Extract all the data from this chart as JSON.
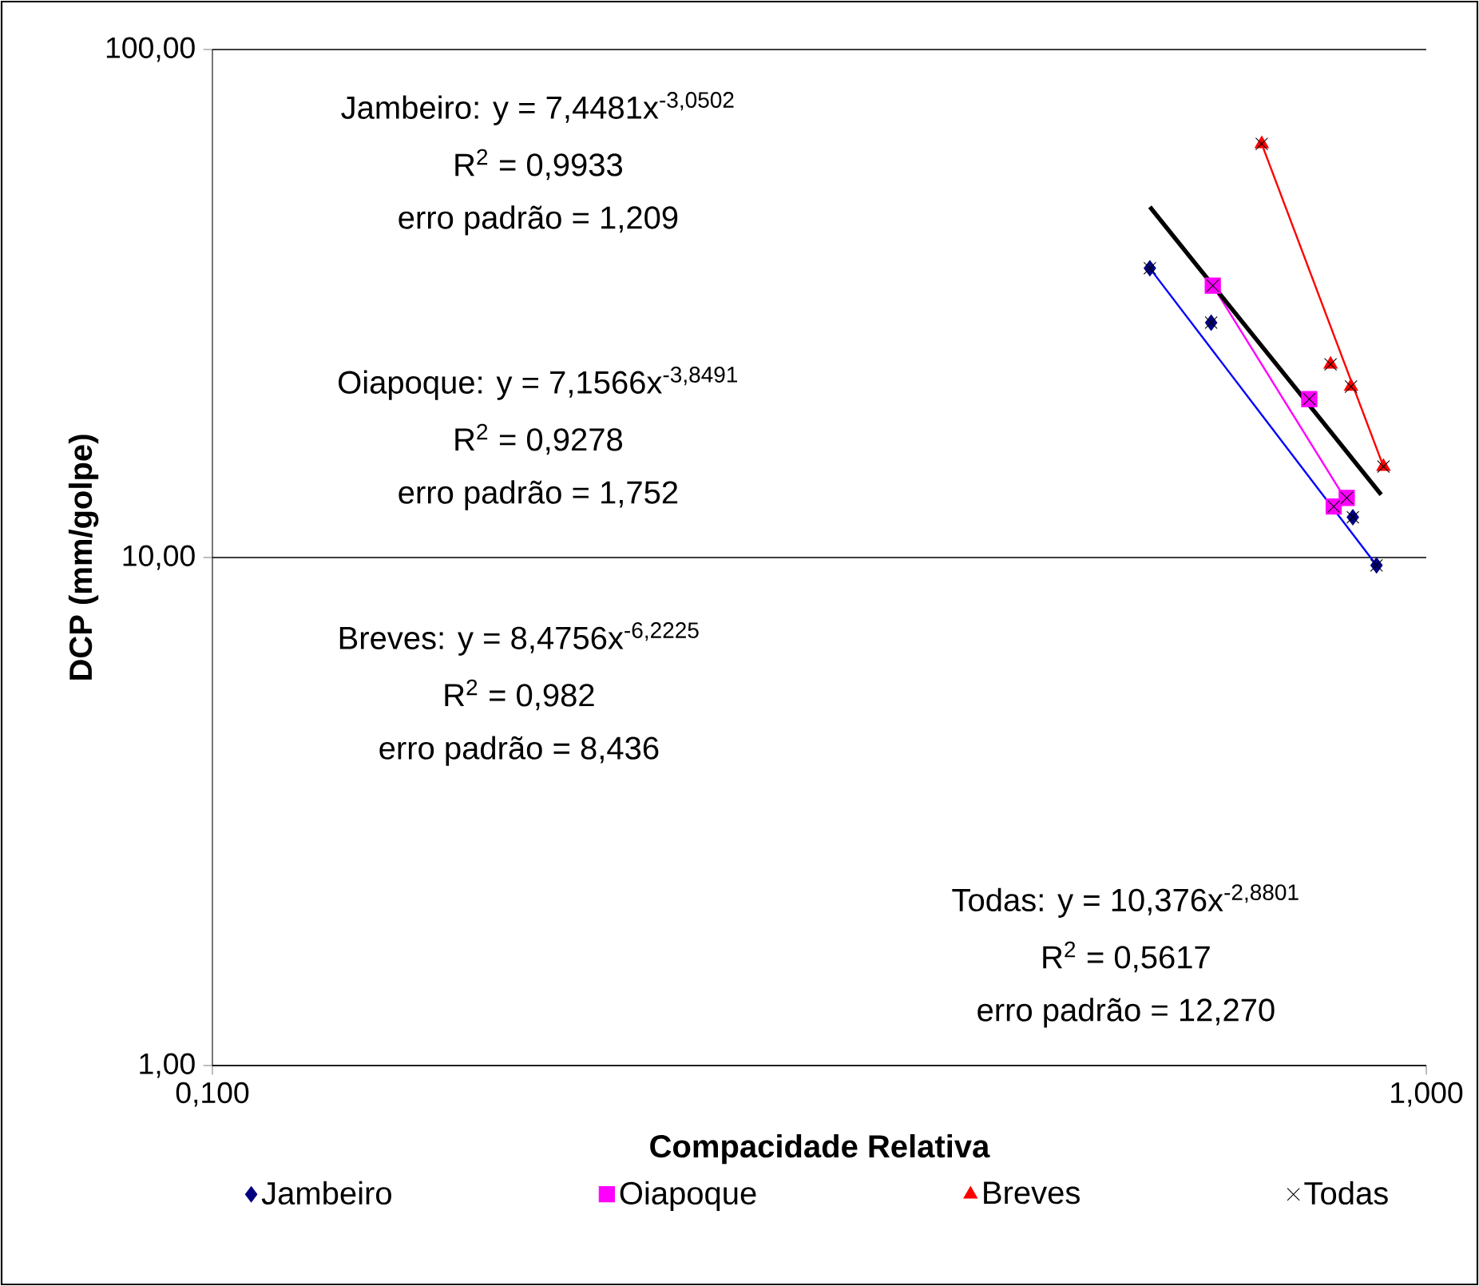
{
  "chart_data": {
    "type": "scatter",
    "xlabel": "Compacidade Relativa",
    "ylabel": "DCP (mm/golpe)",
    "log": "xy",
    "grid": "y",
    "legend": "bottom",
    "xlim": [
      0.1,
      1
    ],
    "ylim": [
      1,
      100
    ],
    "xticks": [
      {
        "value": 0.1,
        "label": "0,100"
      },
      {
        "value": 1,
        "label": "1,000"
      }
    ],
    "yticks": [
      {
        "value": 1,
        "label": "1,00"
      },
      {
        "value": 10,
        "label": "10,00"
      },
      {
        "value": 100,
        "label": "100,00"
      }
    ],
    "series": [
      {
        "name": "Jambeiro",
        "color": "#000080",
        "marker": "diamond",
        "x": [
          0.592,
          0.665,
          0.87,
          0.91
        ],
        "values": [
          37.1,
          29.0,
          12.0,
          9.65
        ]
      },
      {
        "name": "Oiapoque",
        "color": "#ff00ff",
        "marker": "square",
        "x": [
          0.667,
          0.801,
          0.839,
          0.86
        ],
        "values": [
          34.3,
          20.5,
          12.6,
          13.1
        ]
      },
      {
        "name": "Breves",
        "color": "#ff0000",
        "marker": "triangle",
        "x": [
          0.732,
          0.834,
          0.867,
          0.922
        ],
        "values": [
          65.2,
          24.0,
          21.7,
          15.1
        ]
      },
      {
        "name": "Todas",
        "color": "#000000",
        "marker": "cross",
        "x": [
          0.592,
          0.665,
          0.87,
          0.91,
          0.667,
          0.801,
          0.839,
          0.86,
          0.732,
          0.834,
          0.867,
          0.922
        ],
        "values": [
          37.1,
          29.0,
          12.0,
          9.65,
          34.3,
          20.5,
          12.6,
          13.1,
          65.2,
          24.0,
          21.7,
          15.1
        ]
      },
      {
        "type": "line",
        "color": "#0000ff",
        "marker": "none",
        "x": [
          0.592,
          0.91
        ],
        "values": [
          37.1,
          9.65
        ]
      },
      {
        "type": "line",
        "color": "#ff00ff",
        "marker": "none",
        "x": [
          0.667,
          0.86
        ],
        "values": [
          34.3,
          12.9
        ]
      },
      {
        "type": "line",
        "color": "#ff0000",
        "marker": "none",
        "x": [
          0.732,
          0.922
        ],
        "values": [
          65.2,
          15.1
        ]
      },
      {
        "type": "line",
        "color": "#000000",
        "marker": "none",
        "x": [
          0.592,
          0.918
        ],
        "values": [
          49.0,
          13.3
        ]
      }
    ],
    "annotations": [
      "Jambeiro: y = 7,4481x$^{-3,0502}$",
      "R$^{2}$ = 0,9933",
      "erro padrão = 1,209",
      "Oiapoque: y = 7,1566x$^{-3,8491}$",
      "R$^{2}$ = 0,9278",
      "erro padrão = 1,752",
      "Breves: y = 8,4756x$^{-6,2225}$",
      "R$^{2}$ = 0,982",
      "erro padrão = 8,436",
      "Todas: y = 10,376x$^{-2,8801}$",
      "R$^{2}$ = 0,5617",
      "erro padrão = 12,270"
    ]
  }
}
